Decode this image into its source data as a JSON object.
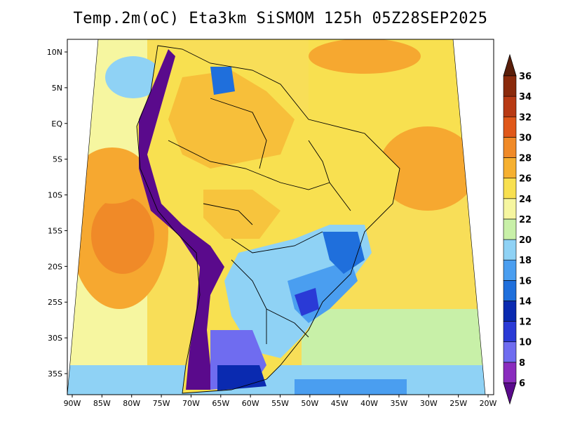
{
  "title": "Temp.2m(oC) Eta3km SiSMOM 125h 05Z28SEP2025",
  "axes": {
    "lon_labels": [
      "90W",
      "85W",
      "80W",
      "75W",
      "70W",
      "65W",
      "60W",
      "55W",
      "50W",
      "45W",
      "40W",
      "35W",
      "30W",
      "25W",
      "20W"
    ],
    "lat_labels": [
      "10N",
      "5N",
      "EQ",
      "5S",
      "10S",
      "15S",
      "20S",
      "25S",
      "30S",
      "35S"
    ]
  },
  "colorbar": {
    "labels": [
      "6",
      "8",
      "10",
      "12",
      "14",
      "16",
      "18",
      "20",
      "22",
      "24",
      "26",
      "28",
      "30",
      "32",
      "34",
      "36"
    ],
    "colors": [
      "#5a0a8c",
      "#8a2cbe",
      "#6f6cf0",
      "#2a3ad6",
      "#0a2ab0",
      "#1f6fdc",
      "#4a9ef0",
      "#8fd2f5",
      "#c8f0a8",
      "#f6f6a0",
      "#f8e050",
      "#f6b030",
      "#f08a28",
      "#e0581a",
      "#b83a14",
      "#8a2a0c",
      "#5a1e0a"
    ]
  },
  "legend_colors": {
    "ocean_warm": "#f6a830",
    "ocean_hot": "#f08a28",
    "ocean_mid": "#f8de58",
    "ocean_cool": "#f6f6a0",
    "land_warm": "#f8e050",
    "land_cool": "#8fd2f5",
    "land_cold": "#2a3ad6",
    "andes": "#5a0a8c"
  }
}
